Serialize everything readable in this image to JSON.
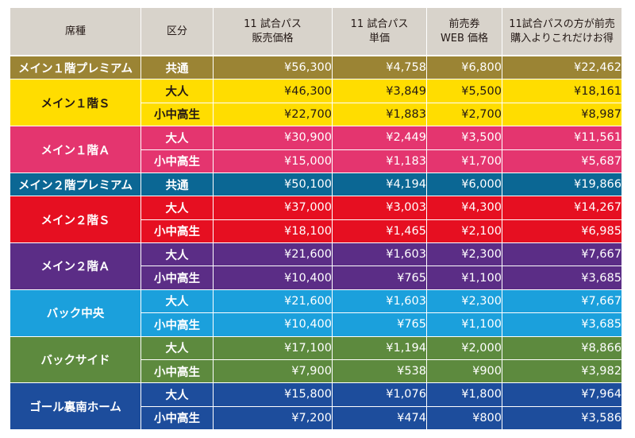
{
  "headers": {
    "seat": [
      "席種"
    ],
    "kubun": [
      "区分"
    ],
    "pass": [
      "11 試合パス",
      "販売価格"
    ],
    "unit": [
      "11 試合パス",
      "単価"
    ],
    "web": [
      "前売券",
      "WEB 価格"
    ],
    "save": [
      "11試合パスの方が前売",
      "購入よりこれだけお得"
    ]
  },
  "groups": [
    {
      "seat": "メイン１階プレミアム",
      "bg": "#9b8434",
      "fg": "#ffffff",
      "rows": [
        {
          "kubun": "共通",
          "pass": "¥56,300",
          "unit": "¥4,758",
          "web": "¥6,800",
          "save": "¥22,462"
        }
      ]
    },
    {
      "seat": "メイン１階Ｓ",
      "bg": "#ffdd00",
      "fg": "#231815",
      "rows": [
        {
          "kubun": "大人",
          "pass": "¥46,300",
          "unit": "¥3,849",
          "web": "¥5,500",
          "save": "¥18,161"
        },
        {
          "kubun": "小中高生",
          "pass": "¥22,700",
          "unit": "¥1,883",
          "web": "¥2,700",
          "save": "¥8,987"
        }
      ]
    },
    {
      "seat": "メイン１階Ａ",
      "bg": "#e4356f",
      "fg": "#ffffff",
      "rows": [
        {
          "kubun": "大人",
          "pass": "¥30,900",
          "unit": "¥2,449",
          "web": "¥3,500",
          "save": "¥11,561"
        },
        {
          "kubun": "小中高生",
          "pass": "¥15,000",
          "unit": "¥1,183",
          "web": "¥1,700",
          "save": "¥5,687"
        }
      ]
    },
    {
      "seat": "メイン２階プレミアム",
      "bg": "#0b6794",
      "fg": "#ffffff",
      "rows": [
        {
          "kubun": "共通",
          "pass": "¥50,100",
          "unit": "¥4,194",
          "web": "¥6,000",
          "save": "¥19,866"
        }
      ]
    },
    {
      "seat": "メイン２階Ｓ",
      "bg": "#e60f21",
      "fg": "#ffffff",
      "rows": [
        {
          "kubun": "大人",
          "pass": "¥37,000",
          "unit": "¥3,003",
          "web": "¥4,300",
          "save": "¥14,267"
        },
        {
          "kubun": "小中高生",
          "pass": "¥18,100",
          "unit": "¥1,465",
          "web": "¥2,100",
          "save": "¥6,985"
        }
      ]
    },
    {
      "seat": "メイン２階Ａ",
      "bg": "#5b2d86",
      "fg": "#ffffff",
      "rows": [
        {
          "kubun": "大人",
          "pass": "¥21,600",
          "unit": "¥1,603",
          "web": "¥2,300",
          "save": "¥7,667"
        },
        {
          "kubun": "小中高生",
          "pass": "¥10,400",
          "unit": "¥765",
          "web": "¥1,100",
          "save": "¥3,685"
        }
      ]
    },
    {
      "seat": "バック中央",
      "bg": "#1ba0dc",
      "fg": "#ffffff",
      "rows": [
        {
          "kubun": "大人",
          "pass": "¥21,600",
          "unit": "¥1,603",
          "web": "¥2,300",
          "save": "¥7,667"
        },
        {
          "kubun": "小中高生",
          "pass": "¥10,400",
          "unit": "¥765",
          "web": "¥1,100",
          "save": "¥3,685"
        }
      ]
    },
    {
      "seat": "バックサイド",
      "bg": "#5d8a3e",
      "fg": "#ffffff",
      "rows": [
        {
          "kubun": "大人",
          "pass": "¥17,100",
          "unit": "¥1,194",
          "web": "¥2,000",
          "save": "¥8,866"
        },
        {
          "kubun": "小中高生",
          "pass": "¥7,900",
          "unit": "¥538",
          "web": "¥900",
          "save": "¥3,982"
        }
      ]
    },
    {
      "seat": "ゴール裏南ホーム",
      "bg": "#1d4d9c",
      "fg": "#ffffff",
      "rows": [
        {
          "kubun": "大人",
          "pass": "¥15,800",
          "unit": "¥1,076",
          "web": "¥1,800",
          "save": "¥7,964"
        },
        {
          "kubun": "小中高生",
          "pass": "¥7,200",
          "unit": "¥474",
          "web": "¥800",
          "save": "¥3,586"
        }
      ]
    }
  ]
}
